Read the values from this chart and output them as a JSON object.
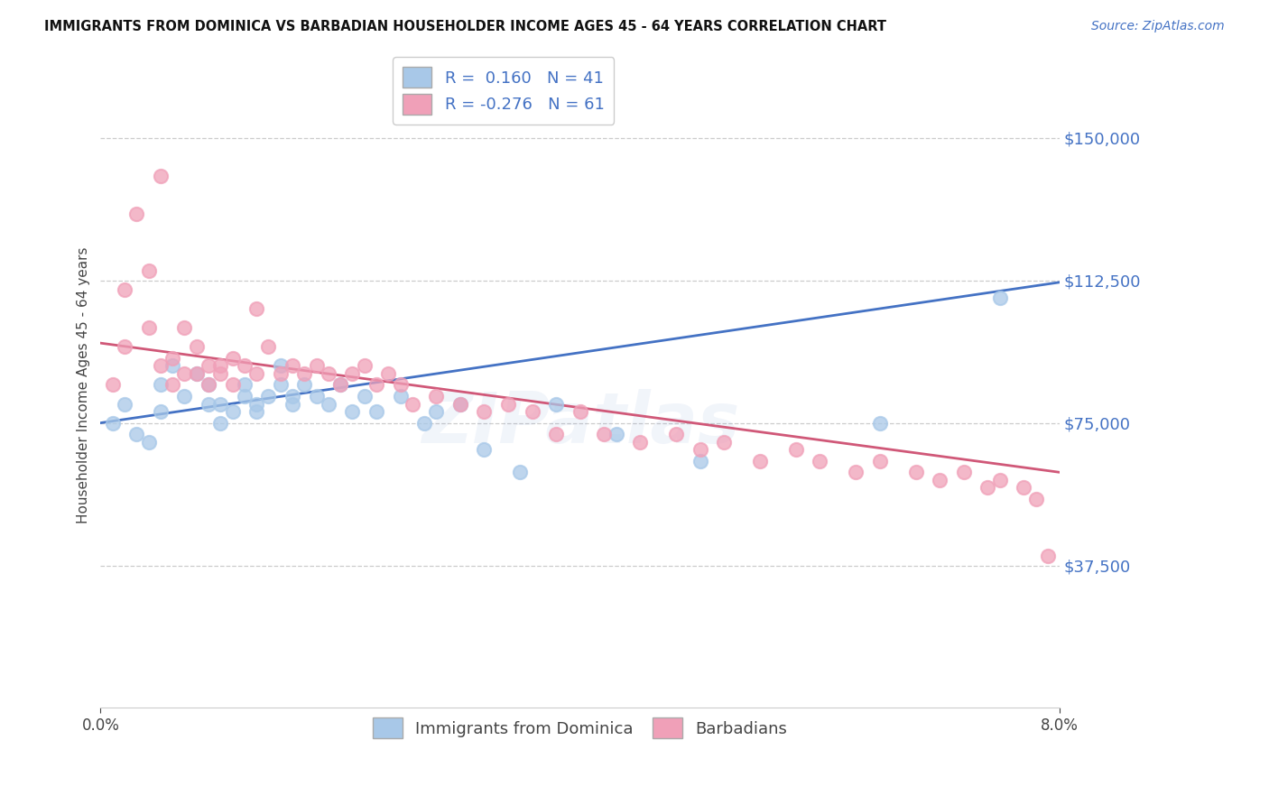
{
  "title": "IMMIGRANTS FROM DOMINICA VS BARBADIAN HOUSEHOLDER INCOME AGES 45 - 64 YEARS CORRELATION CHART",
  "source": "Source: ZipAtlas.com",
  "ylabel": "Householder Income Ages 45 - 64 years",
  "xlim": [
    0.0,
    0.08
  ],
  "ylim": [
    0,
    170000
  ],
  "ytick_vals": [
    37500,
    75000,
    112500,
    150000
  ],
  "ytick_labels": [
    "$37,500",
    "$75,000",
    "$112,500",
    "$150,000"
  ],
  "xtick_vals": [
    0.0,
    0.08
  ],
  "xtick_labels": [
    "0.0%",
    "8.0%"
  ],
  "blue_R": 0.16,
  "blue_N": 41,
  "pink_R": -0.276,
  "pink_N": 61,
  "blue_color": "#a8c8e8",
  "pink_color": "#f0a0b8",
  "blue_line_color": "#4472c4",
  "pink_line_color": "#d05878",
  "legend_label_blue": "Immigrants from Dominica",
  "legend_label_pink": "Barbadians",
  "watermark": "ZIPatlas",
  "blue_line_x": [
    0.0,
    0.08
  ],
  "blue_line_y": [
    75000,
    112000
  ],
  "pink_line_x": [
    0.0,
    0.08
  ],
  "pink_line_y": [
    96000,
    62000
  ],
  "blue_scatter_x": [
    0.001,
    0.002,
    0.003,
    0.004,
    0.005,
    0.005,
    0.006,
    0.007,
    0.008,
    0.009,
    0.009,
    0.01,
    0.01,
    0.011,
    0.012,
    0.012,
    0.013,
    0.013,
    0.014,
    0.015,
    0.015,
    0.016,
    0.016,
    0.017,
    0.018,
    0.019,
    0.02,
    0.021,
    0.022,
    0.023,
    0.025,
    0.027,
    0.028,
    0.03,
    0.032,
    0.035,
    0.038,
    0.043,
    0.05,
    0.065,
    0.075
  ],
  "blue_scatter_y": [
    75000,
    80000,
    72000,
    70000,
    85000,
    78000,
    90000,
    82000,
    88000,
    80000,
    85000,
    80000,
    75000,
    78000,
    85000,
    82000,
    80000,
    78000,
    82000,
    90000,
    85000,
    82000,
    80000,
    85000,
    82000,
    80000,
    85000,
    78000,
    82000,
    78000,
    82000,
    75000,
    78000,
    80000,
    68000,
    62000,
    80000,
    72000,
    65000,
    75000,
    108000
  ],
  "pink_scatter_x": [
    0.001,
    0.002,
    0.002,
    0.003,
    0.004,
    0.004,
    0.005,
    0.005,
    0.006,
    0.006,
    0.007,
    0.007,
    0.008,
    0.008,
    0.009,
    0.009,
    0.01,
    0.01,
    0.011,
    0.011,
    0.012,
    0.013,
    0.013,
    0.014,
    0.015,
    0.016,
    0.017,
    0.018,
    0.019,
    0.02,
    0.021,
    0.022,
    0.023,
    0.024,
    0.025,
    0.026,
    0.028,
    0.03,
    0.032,
    0.034,
    0.036,
    0.038,
    0.04,
    0.042,
    0.045,
    0.048,
    0.05,
    0.052,
    0.055,
    0.058,
    0.06,
    0.063,
    0.065,
    0.068,
    0.07,
    0.072,
    0.074,
    0.075,
    0.077,
    0.078,
    0.079
  ],
  "pink_scatter_y": [
    85000,
    95000,
    110000,
    130000,
    100000,
    115000,
    90000,
    140000,
    92000,
    85000,
    88000,
    100000,
    88000,
    95000,
    90000,
    85000,
    90000,
    88000,
    92000,
    85000,
    90000,
    88000,
    105000,
    95000,
    88000,
    90000,
    88000,
    90000,
    88000,
    85000,
    88000,
    90000,
    85000,
    88000,
    85000,
    80000,
    82000,
    80000,
    78000,
    80000,
    78000,
    72000,
    78000,
    72000,
    70000,
    72000,
    68000,
    70000,
    65000,
    68000,
    65000,
    62000,
    65000,
    62000,
    60000,
    62000,
    58000,
    60000,
    58000,
    55000,
    40000
  ]
}
